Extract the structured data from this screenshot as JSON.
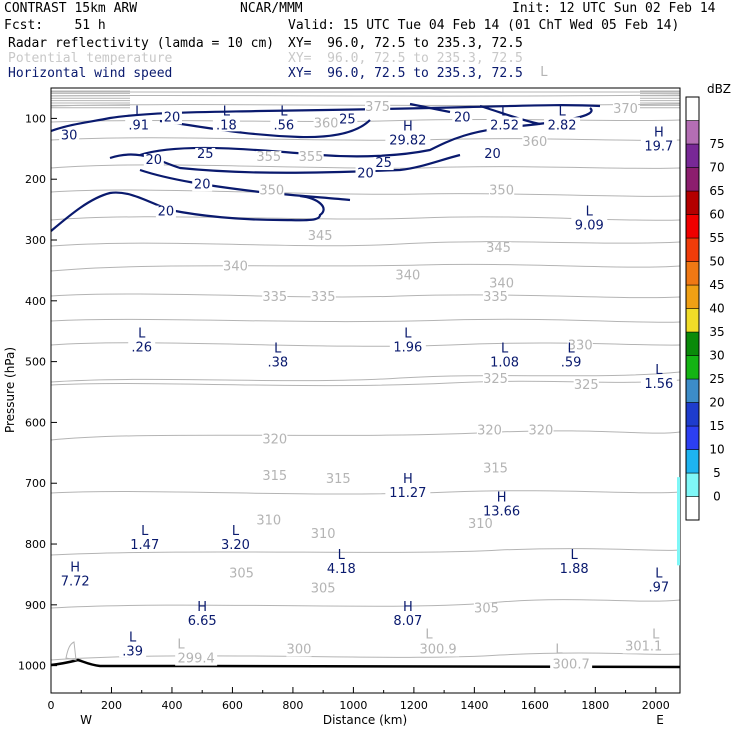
{
  "header": {
    "line1_left": "CONTRAST 15km ARW",
    "line1_mid": "NCAR/MMM",
    "line1_right": "Init: 12 UTC Sun 02 Feb 14",
    "line2_left": "Fcst:    51 h",
    "line2_right": "Valid: 15 UTC Tue 04 Feb 14 (01 ChT Wed 05 Feb 14)",
    "field1": "Radar reflectivity (lamda = 10 cm)",
    "field1_xy": "XY=  96.0, 72.5 to 235.3, 72.5",
    "field2": "Potential temperature",
    "field2_xy": "XY=  96.0, 72.5 to 235.3, 72.5",
    "field3": "Horizontal wind speed",
    "field3_xy": "XY=  96.0, 72.5 to 235.3, 72.5"
  },
  "colors": {
    "theta": "#b4b4b4",
    "wind": "#0a1a6e",
    "terrain": "#000000",
    "text": "#000000"
  },
  "chart_data": {
    "type": "cross-section",
    "xlabel": "Distance (km)",
    "ylabel": "Pressure (hPa)",
    "xlim": [
      0,
      2080
    ],
    "ylim": [
      50,
      1045
    ],
    "x_ticks": [
      "0",
      "200",
      "400",
      "600",
      "800",
      "1000",
      "1200",
      "1400",
      "1600",
      "1800",
      "2000"
    ],
    "y_ticks": [
      "100",
      "200",
      "300",
      "400",
      "500",
      "600",
      "700",
      "800",
      "900",
      "1000"
    ],
    "side_left": "W",
    "side_right": "E",
    "colorbar": {
      "unit": "dBZ",
      "levels": [
        "0",
        "5",
        "10",
        "15",
        "20",
        "25",
        "30",
        "35",
        "40",
        "45",
        "50",
        "55",
        "60",
        "65",
        "70",
        "75"
      ],
      "colors": [
        "#ffffff",
        "#7ff7f7",
        "#1eb4f0",
        "#2c3ff2",
        "#1e3ccd",
        "#3c8cc8",
        "#14b414",
        "#0a8a0a",
        "#f0dc28",
        "#f0a014",
        "#f07814",
        "#f03c0a",
        "#f00000",
        "#b40000",
        "#8c1e6e",
        "#782896",
        "#b46eb4",
        "#ffffff"
      ]
    },
    "theta_labels": [
      {
        "text": "375",
        "x": 1080,
        "p": 88
      },
      {
        "text": "370",
        "x": 1900,
        "p": 91
      },
      {
        "text": "360",
        "x": 910,
        "p": 115
      },
      {
        "text": "360",
        "x": 1600,
        "p": 145
      },
      {
        "text": "355",
        "x": 720,
        "p": 170
      },
      {
        "text": "355",
        "x": 860,
        "p": 170
      },
      {
        "text": "350",
        "x": 730,
        "p": 225
      },
      {
        "text": "350",
        "x": 1490,
        "p": 225
      },
      {
        "text": "345",
        "x": 890,
        "p": 300
      },
      {
        "text": "345",
        "x": 1480,
        "p": 320
      },
      {
        "text": "340",
        "x": 610,
        "p": 350
      },
      {
        "text": "340",
        "x": 1180,
        "p": 365
      },
      {
        "text": "340",
        "x": 1490,
        "p": 378
      },
      {
        "text": "335",
        "x": 740,
        "p": 400
      },
      {
        "text": "335",
        "x": 900,
        "p": 400
      },
      {
        "text": "335",
        "x": 1470,
        "p": 400
      },
      {
        "text": "330",
        "x": 1750,
        "p": 480
      },
      {
        "text": "325",
        "x": 1470,
        "p": 535
      },
      {
        "text": "325",
        "x": 1770,
        "p": 545
      },
      {
        "text": "320",
        "x": 740,
        "p": 635
      },
      {
        "text": "320",
        "x": 1450,
        "p": 620
      },
      {
        "text": "320",
        "x": 1620,
        "p": 620
      },
      {
        "text": "315",
        "x": 740,
        "p": 695
      },
      {
        "text": "315",
        "x": 950,
        "p": 700
      },
      {
        "text": "315",
        "x": 1470,
        "p": 682
      },
      {
        "text": "310",
        "x": 720,
        "p": 768
      },
      {
        "text": "310",
        "x": 900,
        "p": 790
      },
      {
        "text": "310",
        "x": 1420,
        "p": 774
      },
      {
        "text": "305",
        "x": 630,
        "p": 855
      },
      {
        "text": "305",
        "x": 900,
        "p": 880
      },
      {
        "text": "305",
        "x": 1440,
        "p": 913
      },
      {
        "text": "300",
        "x": 820,
        "p": 980
      },
      {
        "text": "299.4",
        "x": 480,
        "p": 995
      },
      {
        "text": "300.9",
        "x": 1280,
        "p": 980
      },
      {
        "text": "301.1",
        "x": 1960,
        "p": 975
      },
      {
        "text": "300.7",
        "x": 1720,
        "p": 1005
      }
    ],
    "theta_extrema_letters": [
      {
        "text": "L",
        "x": 430,
        "p": 972
      },
      {
        "text": "L",
        "x": 1250,
        "p": 955
      },
      {
        "text": "L",
        "x": 2000,
        "p": 955
      },
      {
        "text": "L",
        "x": 1680,
        "p": 980
      },
      {
        "text": "L",
        "x": 1630,
        "p": 30
      }
    ],
    "wind_contour_labels": [
      {
        "text": "20",
        "x": 400,
        "p": 105
      },
      {
        "text": "30",
        "x": 60,
        "p": 135
      },
      {
        "text": "25",
        "x": 980,
        "p": 108
      },
      {
        "text": "20",
        "x": 1360,
        "p": 105
      },
      {
        "text": "25",
        "x": 510,
        "p": 165
      },
      {
        "text": "20",
        "x": 340,
        "p": 175
      },
      {
        "text": "20",
        "x": 500,
        "p": 215
      },
      {
        "text": "25",
        "x": 1100,
        "p": 180
      },
      {
        "text": "20",
        "x": 1040,
        "p": 197
      },
      {
        "text": "20",
        "x": 1460,
        "p": 165
      },
      {
        "text": "20",
        "x": 380,
        "p": 260
      }
    ],
    "wind_extrema": [
      {
        "kind": "L",
        "value": ".91",
        "x": 290,
        "p": 95
      },
      {
        "kind": "L",
        "value": ".18",
        "x": 580,
        "p": 95
      },
      {
        "kind": "L",
        "value": ".56",
        "x": 770,
        "p": 95
      },
      {
        "kind": "H",
        "value": "29.82",
        "x": 1180,
        "p": 120
      },
      {
        "kind": "L",
        "value": "2.52",
        "x": 1500,
        "p": 95
      },
      {
        "kind": "L",
        "value": "2.82",
        "x": 1690,
        "p": 95
      },
      {
        "kind": "H",
        "value": "19.7",
        "x": 2010,
        "p": 130
      },
      {
        "kind": "L",
        "value": "9.09",
        "x": 1780,
        "p": 260
      },
      {
        "kind": "L",
        "value": ".26",
        "x": 300,
        "p": 460
      },
      {
        "kind": "L",
        "value": ".38",
        "x": 750,
        "p": 485
      },
      {
        "kind": "L",
        "value": "1.96",
        "x": 1180,
        "p": 460
      },
      {
        "kind": "L",
        "value": "1.08",
        "x": 1500,
        "p": 485
      },
      {
        "kind": "L",
        "value": ".59",
        "x": 1720,
        "p": 485
      },
      {
        "kind": "L",
        "value": "1.56",
        "x": 2010,
        "p": 520
      },
      {
        "kind": "H",
        "value": "11.27",
        "x": 1180,
        "p": 700
      },
      {
        "kind": "H",
        "value": "13.66",
        "x": 1490,
        "p": 730
      },
      {
        "kind": "L",
        "value": "1.47",
        "x": 310,
        "p": 785
      },
      {
        "kind": "L",
        "value": "3.20",
        "x": 610,
        "p": 785
      },
      {
        "kind": "L",
        "value": "4.18",
        "x": 960,
        "p": 825
      },
      {
        "kind": "L",
        "value": "1.88",
        "x": 1730,
        "p": 825
      },
      {
        "kind": "H",
        "value": "7.72",
        "x": 80,
        "p": 845
      },
      {
        "kind": "L",
        "value": ".97",
        "x": 2010,
        "p": 855
      },
      {
        "kind": "H",
        "value": "6.65",
        "x": 500,
        "p": 910
      },
      {
        "kind": "H",
        "value": "8.07",
        "x": 1180,
        "p": 910
      },
      {
        "kind": "L",
        "value": ".39",
        "x": 270,
        "p": 960
      }
    ]
  }
}
